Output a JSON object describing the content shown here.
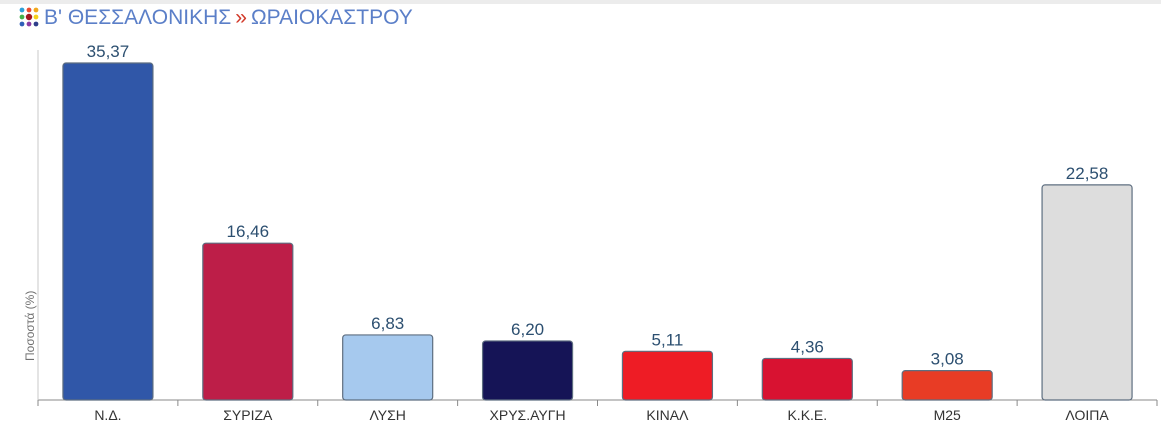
{
  "header": {
    "region": "Β' ΘΕΣΣΑΛΟΝΙΚΗΣ",
    "separator": "»",
    "municipality": "ΩΡΑΙΟΚΑΣΤΡΟΥ",
    "logo_icon": "colored-dots-logo-icon"
  },
  "chart_data": {
    "type": "bar",
    "ylabel": "Ποσοστά (%)",
    "categories": [
      "Ν.Δ.",
      "ΣΥΡΙΖΑ",
      "ΛΥΣΗ",
      "ΧΡΥΣ.ΑΥΓΗ",
      "ΚΙΝΑΛ",
      "Κ.Κ.Ε.",
      "Μ25",
      "ΛΟΙΠΑ"
    ],
    "values": [
      35.37,
      16.46,
      6.83,
      6.2,
      5.11,
      4.36,
      3.08,
      22.58
    ],
    "value_labels": [
      "35,37",
      "16,46",
      "6,83",
      "6,20",
      "5,11",
      "4,36",
      "3,08",
      "22,58"
    ],
    "colors": [
      "#3057a8",
      "#bd1e48",
      "#a6c9ee",
      "#151456",
      "#ee1c25",
      "#d81231",
      "#e83c25",
      "#dddddd"
    ],
    "ylim": [
      0,
      35.37
    ],
    "grid": false
  }
}
